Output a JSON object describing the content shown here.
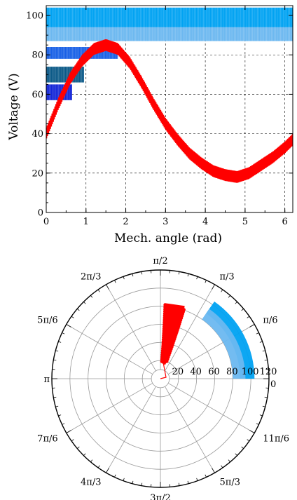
{
  "chart_data": [
    {
      "type": "line",
      "xlabel": "Mech. angle (rad)",
      "ylabel": "Voltage (V)",
      "xlim": [
        0,
        6.2
      ],
      "ylim": [
        0,
        105
      ],
      "x_ticks": [
        "0",
        "1",
        "2",
        "3",
        "4",
        "5",
        "6"
      ],
      "y_ticks": [
        "0",
        "20",
        "40",
        "60",
        "80",
        "100"
      ],
      "grid": true,
      "series": [
        {
          "color": "#ff0000",
          "ripple": 6,
          "x": [
            0,
            0.3,
            0.6,
            0.9,
            1.2,
            1.5,
            1.8,
            2.1,
            2.4,
            2.7,
            3.0,
            3.3,
            3.6,
            3.9,
            4.2,
            4.5,
            4.8,
            5.1,
            5.4,
            5.7,
            6.0,
            6.2
          ],
          "y": [
            40,
            55,
            68,
            77,
            83,
            85,
            83,
            76,
            66,
            55,
            45,
            37,
            30,
            25,
            21,
            19,
            18,
            20,
            24,
            28,
            33,
            37
          ]
        }
      ],
      "bands": [
        {
          "color": "#00a2f2",
          "x": [
            0,
            6.2
          ],
          "y": [
            94,
            104
          ]
        },
        {
          "color": "#6cb8f0",
          "x": [
            0,
            6.2
          ],
          "y": [
            87,
            94
          ]
        },
        {
          "color": "#1960e6",
          "x": [
            0,
            1.8
          ],
          "y": [
            78,
            84
          ]
        },
        {
          "color": "#0c5a88",
          "x": [
            0,
            0.95
          ],
          "y": [
            66,
            74
          ]
        },
        {
          "color": "#1426d8",
          "x": [
            0,
            0.65
          ],
          "y": [
            57,
            65
          ]
        }
      ]
    },
    {
      "type": "polar",
      "r_ticks": [
        "20",
        "40",
        "60",
        "80",
        "100",
        "120"
      ],
      "r_max": 120,
      "theta_labels": [
        "0",
        "π/6",
        "π/3",
        "π/2",
        "2π/3",
        "5π/6",
        "π",
        "7π/6",
        "4π/3",
        "3π/2",
        "5π/3",
        "11π/6"
      ],
      "grid": true,
      "series": [
        {
          "color": "#00a2f2",
          "theta_deg": [
            0,
            55
          ],
          "r": [
            88,
            104
          ]
        },
        {
          "color": "#6cb8f0",
          "theta_deg": [
            0,
            55
          ],
          "r": [
            80,
            94
          ]
        },
        {
          "color": "#ff0000",
          "theta_deg": [
            70,
            85
          ],
          "r": [
            18,
            84
          ]
        }
      ]
    }
  ]
}
